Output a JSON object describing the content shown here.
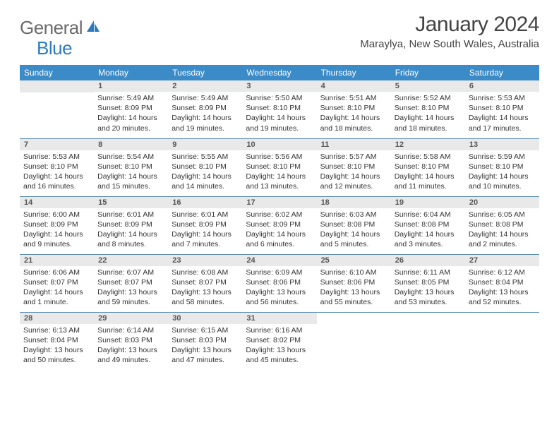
{
  "brand": {
    "word1": "General",
    "word2": "Blue"
  },
  "header": {
    "title": "January 2024",
    "location": "Maraylya, New South Wales, Australia"
  },
  "colors": {
    "header_bg": "#3b8bc9",
    "daynum_bg": "#e9e9e9",
    "row_border": "#5a8bb0"
  },
  "weekdays": [
    "Sunday",
    "Monday",
    "Tuesday",
    "Wednesday",
    "Thursday",
    "Friday",
    "Saturday"
  ],
  "weeks": [
    [
      {
        "blank": true
      },
      {
        "day": "1",
        "sunrise": "Sunrise: 5:49 AM",
        "sunset": "Sunset: 8:09 PM",
        "daylight1": "Daylight: 14 hours",
        "daylight2": "and 20 minutes."
      },
      {
        "day": "2",
        "sunrise": "Sunrise: 5:49 AM",
        "sunset": "Sunset: 8:09 PM",
        "daylight1": "Daylight: 14 hours",
        "daylight2": "and 19 minutes."
      },
      {
        "day": "3",
        "sunrise": "Sunrise: 5:50 AM",
        "sunset": "Sunset: 8:10 PM",
        "daylight1": "Daylight: 14 hours",
        "daylight2": "and 19 minutes."
      },
      {
        "day": "4",
        "sunrise": "Sunrise: 5:51 AM",
        "sunset": "Sunset: 8:10 PM",
        "daylight1": "Daylight: 14 hours",
        "daylight2": "and 18 minutes."
      },
      {
        "day": "5",
        "sunrise": "Sunrise: 5:52 AM",
        "sunset": "Sunset: 8:10 PM",
        "daylight1": "Daylight: 14 hours",
        "daylight2": "and 18 minutes."
      },
      {
        "day": "6",
        "sunrise": "Sunrise: 5:53 AM",
        "sunset": "Sunset: 8:10 PM",
        "daylight1": "Daylight: 14 hours",
        "daylight2": "and 17 minutes."
      }
    ],
    [
      {
        "day": "7",
        "sunrise": "Sunrise: 5:53 AM",
        "sunset": "Sunset: 8:10 PM",
        "daylight1": "Daylight: 14 hours",
        "daylight2": "and 16 minutes."
      },
      {
        "day": "8",
        "sunrise": "Sunrise: 5:54 AM",
        "sunset": "Sunset: 8:10 PM",
        "daylight1": "Daylight: 14 hours",
        "daylight2": "and 15 minutes."
      },
      {
        "day": "9",
        "sunrise": "Sunrise: 5:55 AM",
        "sunset": "Sunset: 8:10 PM",
        "daylight1": "Daylight: 14 hours",
        "daylight2": "and 14 minutes."
      },
      {
        "day": "10",
        "sunrise": "Sunrise: 5:56 AM",
        "sunset": "Sunset: 8:10 PM",
        "daylight1": "Daylight: 14 hours",
        "daylight2": "and 13 minutes."
      },
      {
        "day": "11",
        "sunrise": "Sunrise: 5:57 AM",
        "sunset": "Sunset: 8:10 PM",
        "daylight1": "Daylight: 14 hours",
        "daylight2": "and 12 minutes."
      },
      {
        "day": "12",
        "sunrise": "Sunrise: 5:58 AM",
        "sunset": "Sunset: 8:10 PM",
        "daylight1": "Daylight: 14 hours",
        "daylight2": "and 11 minutes."
      },
      {
        "day": "13",
        "sunrise": "Sunrise: 5:59 AM",
        "sunset": "Sunset: 8:10 PM",
        "daylight1": "Daylight: 14 hours",
        "daylight2": "and 10 minutes."
      }
    ],
    [
      {
        "day": "14",
        "sunrise": "Sunrise: 6:00 AM",
        "sunset": "Sunset: 8:09 PM",
        "daylight1": "Daylight: 14 hours",
        "daylight2": "and 9 minutes."
      },
      {
        "day": "15",
        "sunrise": "Sunrise: 6:01 AM",
        "sunset": "Sunset: 8:09 PM",
        "daylight1": "Daylight: 14 hours",
        "daylight2": "and 8 minutes."
      },
      {
        "day": "16",
        "sunrise": "Sunrise: 6:01 AM",
        "sunset": "Sunset: 8:09 PM",
        "daylight1": "Daylight: 14 hours",
        "daylight2": "and 7 minutes."
      },
      {
        "day": "17",
        "sunrise": "Sunrise: 6:02 AM",
        "sunset": "Sunset: 8:09 PM",
        "daylight1": "Daylight: 14 hours",
        "daylight2": "and 6 minutes."
      },
      {
        "day": "18",
        "sunrise": "Sunrise: 6:03 AM",
        "sunset": "Sunset: 8:08 PM",
        "daylight1": "Daylight: 14 hours",
        "daylight2": "and 5 minutes."
      },
      {
        "day": "19",
        "sunrise": "Sunrise: 6:04 AM",
        "sunset": "Sunset: 8:08 PM",
        "daylight1": "Daylight: 14 hours",
        "daylight2": "and 3 minutes."
      },
      {
        "day": "20",
        "sunrise": "Sunrise: 6:05 AM",
        "sunset": "Sunset: 8:08 PM",
        "daylight1": "Daylight: 14 hours",
        "daylight2": "and 2 minutes."
      }
    ],
    [
      {
        "day": "21",
        "sunrise": "Sunrise: 6:06 AM",
        "sunset": "Sunset: 8:07 PM",
        "daylight1": "Daylight: 14 hours",
        "daylight2": "and 1 minute."
      },
      {
        "day": "22",
        "sunrise": "Sunrise: 6:07 AM",
        "sunset": "Sunset: 8:07 PM",
        "daylight1": "Daylight: 13 hours",
        "daylight2": "and 59 minutes."
      },
      {
        "day": "23",
        "sunrise": "Sunrise: 6:08 AM",
        "sunset": "Sunset: 8:07 PM",
        "daylight1": "Daylight: 13 hours",
        "daylight2": "and 58 minutes."
      },
      {
        "day": "24",
        "sunrise": "Sunrise: 6:09 AM",
        "sunset": "Sunset: 8:06 PM",
        "daylight1": "Daylight: 13 hours",
        "daylight2": "and 56 minutes."
      },
      {
        "day": "25",
        "sunrise": "Sunrise: 6:10 AM",
        "sunset": "Sunset: 8:06 PM",
        "daylight1": "Daylight: 13 hours",
        "daylight2": "and 55 minutes."
      },
      {
        "day": "26",
        "sunrise": "Sunrise: 6:11 AM",
        "sunset": "Sunset: 8:05 PM",
        "daylight1": "Daylight: 13 hours",
        "daylight2": "and 53 minutes."
      },
      {
        "day": "27",
        "sunrise": "Sunrise: 6:12 AM",
        "sunset": "Sunset: 8:04 PM",
        "daylight1": "Daylight: 13 hours",
        "daylight2": "and 52 minutes."
      }
    ],
    [
      {
        "day": "28",
        "sunrise": "Sunrise: 6:13 AM",
        "sunset": "Sunset: 8:04 PM",
        "daylight1": "Daylight: 13 hours",
        "daylight2": "and 50 minutes."
      },
      {
        "day": "29",
        "sunrise": "Sunrise: 6:14 AM",
        "sunset": "Sunset: 8:03 PM",
        "daylight1": "Daylight: 13 hours",
        "daylight2": "and 49 minutes."
      },
      {
        "day": "30",
        "sunrise": "Sunrise: 6:15 AM",
        "sunset": "Sunset: 8:03 PM",
        "daylight1": "Daylight: 13 hours",
        "daylight2": "and 47 minutes."
      },
      {
        "day": "31",
        "sunrise": "Sunrise: 6:16 AM",
        "sunset": "Sunset: 8:02 PM",
        "daylight1": "Daylight: 13 hours",
        "daylight2": "and 45 minutes."
      },
      {
        "blank": true
      },
      {
        "blank": true
      },
      {
        "blank": true
      }
    ]
  ]
}
